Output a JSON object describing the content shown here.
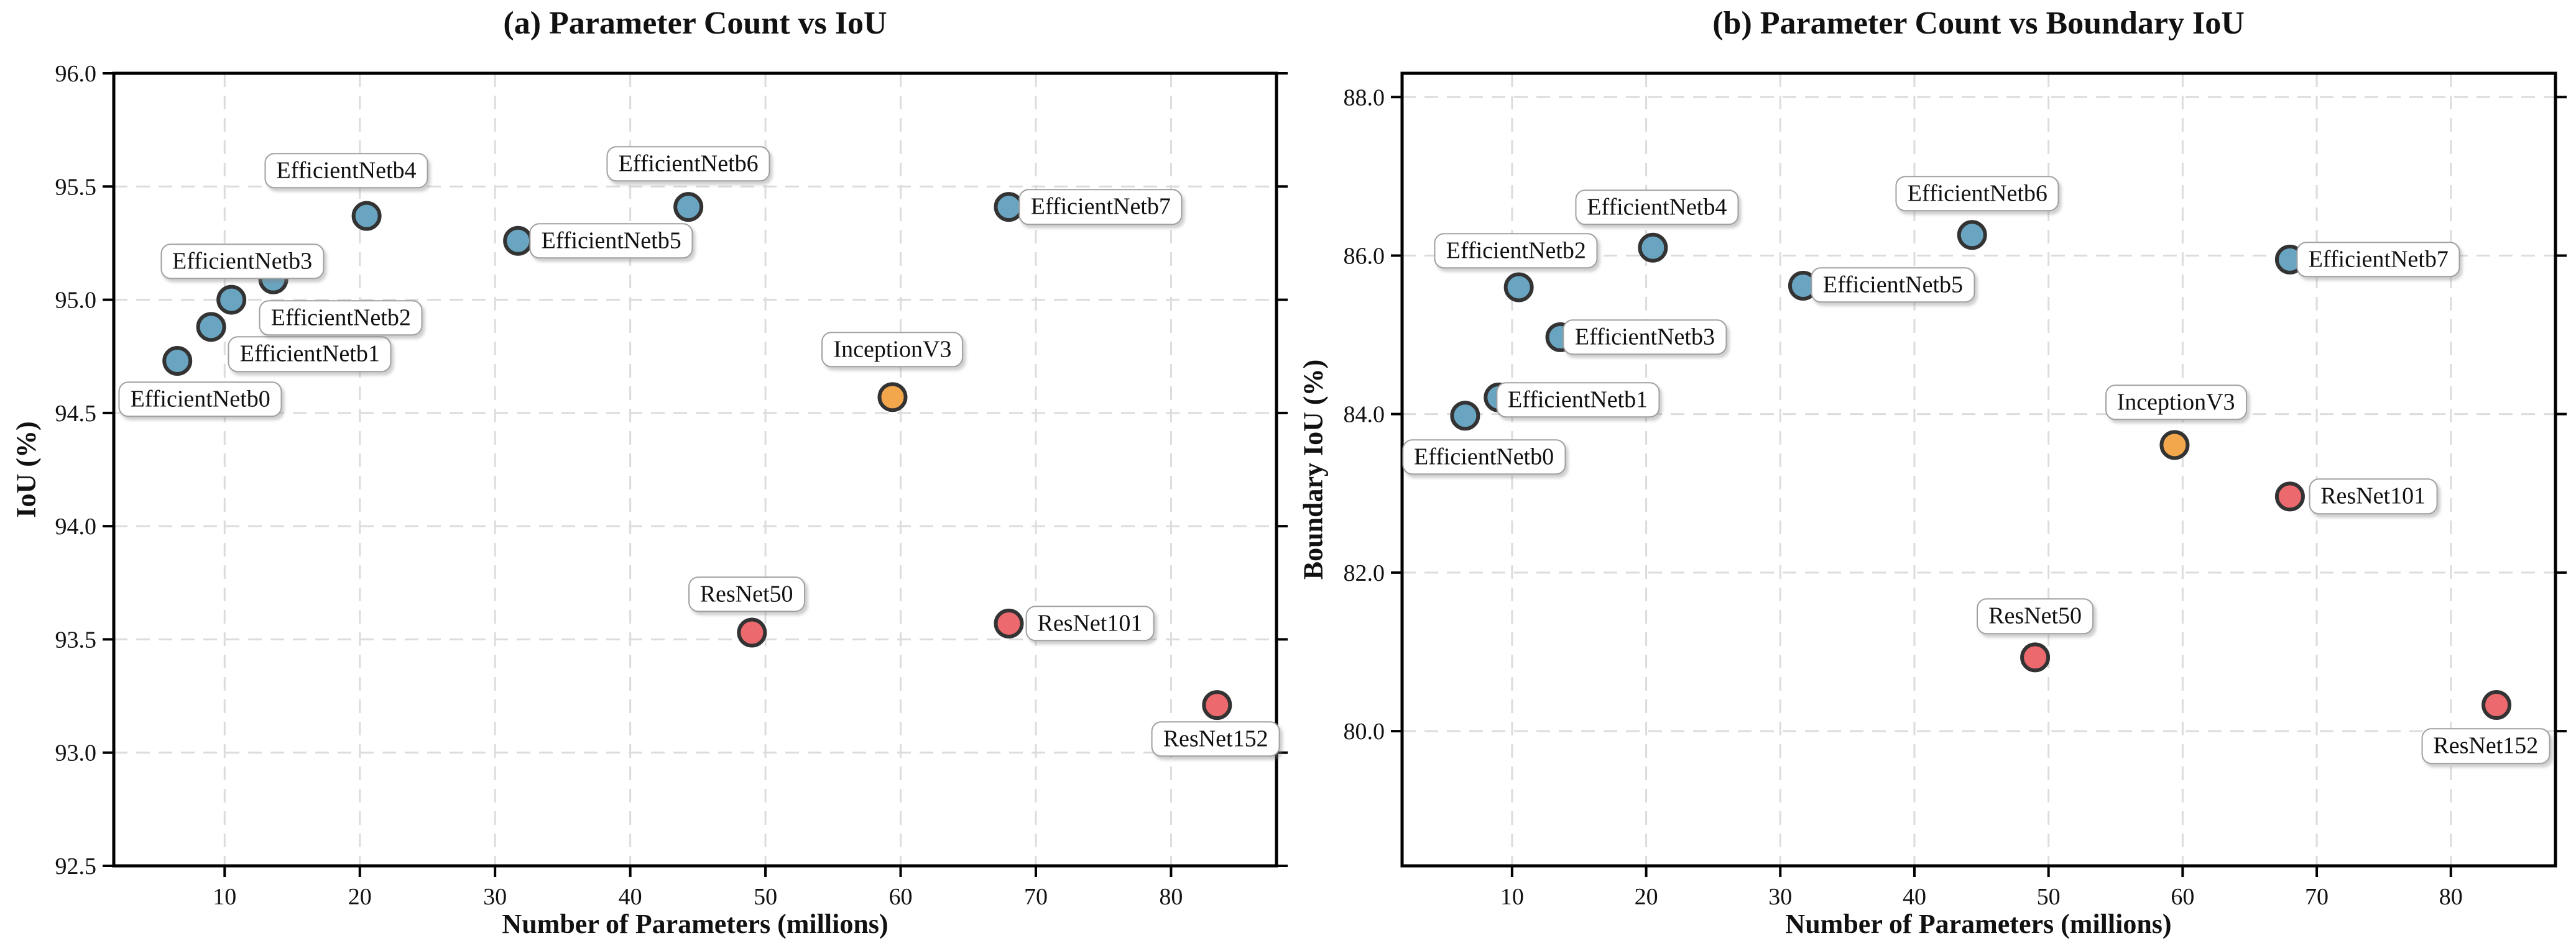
{
  "colors": {
    "efficientnet": "#69A4C1",
    "inception": "#F3A74D",
    "resnet": "#EC6A6E",
    "marker_edge": "#333333",
    "grid": "#dcdcdc",
    "spine": "#000000",
    "annotation_border": "#a0a0a0",
    "background": "#ffffff",
    "text": "#111111"
  },
  "chart_data": [
    {
      "type": "scatter",
      "title": "(a) Parameter Count vs IoU",
      "xlabel": "Number of Parameters (millions)",
      "ylabel": "IoU (%)",
      "xlim": [
        1.8,
        87.8
      ],
      "ylim": [
        92.5,
        96.0
      ],
      "xticks": [
        10,
        20,
        30,
        40,
        50,
        60,
        70,
        80
      ],
      "xtick_labels": [
        "10",
        "20",
        "30",
        "40",
        "50",
        "60",
        "70",
        "80"
      ],
      "yticks": [
        92.5,
        93.0,
        93.5,
        94.0,
        94.5,
        95.0,
        95.5,
        96.0
      ],
      "ytick_labels": [
        "92.5",
        "93.0",
        "93.5",
        "94.0",
        "94.5",
        "95.0",
        "95.5",
        "96.0"
      ],
      "grid": true,
      "legend": "none",
      "points": [
        {
          "label": "EfficientNetb0",
          "x": 6.5,
          "y": 94.73,
          "group": "efficientnet",
          "label_xy": [
            8.2,
            94.56
          ]
        },
        {
          "label": "EfficientNetb1",
          "x": 9.0,
          "y": 94.88,
          "group": "efficientnet",
          "label_xy": [
            16.3,
            94.76
          ]
        },
        {
          "label": "EfficientNetb2",
          "x": 10.5,
          "y": 95.0,
          "group": "efficientnet",
          "label_xy": [
            18.6,
            94.92
          ]
        },
        {
          "label": "EfficientNetb3",
          "x": 13.6,
          "y": 95.09,
          "group": "efficientnet",
          "label_xy": [
            11.3,
            95.17
          ]
        },
        {
          "label": "EfficientNetb4",
          "x": 20.5,
          "y": 95.37,
          "group": "efficientnet",
          "label_xy": [
            19.0,
            95.57
          ]
        },
        {
          "label": "EfficientNetb5",
          "x": 31.7,
          "y": 95.26,
          "group": "efficientnet",
          "label_xy": [
            38.6,
            95.26
          ]
        },
        {
          "label": "EfficientNetb6",
          "x": 44.3,
          "y": 95.41,
          "group": "efficientnet",
          "label_xy": [
            44.3,
            95.6
          ]
        },
        {
          "label": "EfficientNetb7",
          "x": 68.0,
          "y": 95.41,
          "group": "efficientnet",
          "label_xy": [
            74.8,
            95.41
          ]
        },
        {
          "label": "InceptionV3",
          "x": 59.4,
          "y": 94.57,
          "group": "inception",
          "label_xy": [
            59.4,
            94.78
          ]
        },
        {
          "label": "ResNet50",
          "x": 49.0,
          "y": 93.53,
          "group": "resnet",
          "label_xy": [
            48.6,
            93.7
          ]
        },
        {
          "label": "ResNet101",
          "x": 68.0,
          "y": 93.57,
          "group": "resnet",
          "label_xy": [
            74.0,
            93.57
          ]
        },
        {
          "label": "ResNet152",
          "x": 83.4,
          "y": 93.21,
          "group": "resnet",
          "label_xy": [
            83.3,
            93.06
          ]
        }
      ]
    },
    {
      "type": "scatter",
      "title": "(b) Parameter Count vs Boundary IoU",
      "xlabel": "Number of Parameters (millions)",
      "ylabel": "Boundary IoU (%)",
      "xlim": [
        1.8,
        87.8
      ],
      "ylim": [
        78.3,
        88.3
      ],
      "xticks": [
        10,
        20,
        30,
        40,
        50,
        60,
        70,
        80
      ],
      "xtick_labels": [
        "10",
        "20",
        "30",
        "40",
        "50",
        "60",
        "70",
        "80"
      ],
      "yticks": [
        80.0,
        82.0,
        84.0,
        86.0,
        88.0
      ],
      "ytick_labels": [
        "80.0",
        "82.0",
        "84.0",
        "86.0",
        "88.0"
      ],
      "grid": true,
      "legend": "none",
      "points": [
        {
          "label": "EfficientNetb0",
          "x": 6.5,
          "y": 83.98,
          "group": "efficientnet",
          "label_xy": [
            7.9,
            83.46
          ]
        },
        {
          "label": "EfficientNetb1",
          "x": 9.0,
          "y": 84.21,
          "group": "efficientnet",
          "label_xy": [
            14.9,
            84.18
          ]
        },
        {
          "label": "EfficientNetb2",
          "x": 10.5,
          "y": 85.6,
          "group": "efficientnet",
          "label_xy": [
            10.3,
            86.06
          ]
        },
        {
          "label": "EfficientNetb3",
          "x": 13.6,
          "y": 84.97,
          "group": "efficientnet",
          "label_xy": [
            19.9,
            84.97
          ]
        },
        {
          "label": "EfficientNetb4",
          "x": 20.5,
          "y": 86.1,
          "group": "efficientnet",
          "label_xy": [
            20.8,
            86.61
          ]
        },
        {
          "label": "EfficientNetb5",
          "x": 31.7,
          "y": 85.62,
          "group": "efficientnet",
          "label_xy": [
            38.4,
            85.63
          ]
        },
        {
          "label": "EfficientNetb6",
          "x": 44.3,
          "y": 86.26,
          "group": "efficientnet",
          "label_xy": [
            44.7,
            86.78
          ]
        },
        {
          "label": "EfficientNetb7",
          "x": 68.0,
          "y": 85.95,
          "group": "efficientnet",
          "label_xy": [
            74.6,
            85.95
          ]
        },
        {
          "label": "InceptionV3",
          "x": 59.4,
          "y": 83.61,
          "group": "inception",
          "label_xy": [
            59.5,
            84.15
          ]
        },
        {
          "label": "ResNet50",
          "x": 49.0,
          "y": 80.93,
          "group": "resnet",
          "label_xy": [
            49.0,
            81.45
          ]
        },
        {
          "label": "ResNet101",
          "x": 68.0,
          "y": 82.96,
          "group": "resnet",
          "label_xy": [
            74.2,
            82.96
          ]
        },
        {
          "label": "ResNet152",
          "x": 83.4,
          "y": 80.33,
          "group": "resnet",
          "label_xy": [
            82.6,
            79.81
          ]
        }
      ]
    }
  ]
}
